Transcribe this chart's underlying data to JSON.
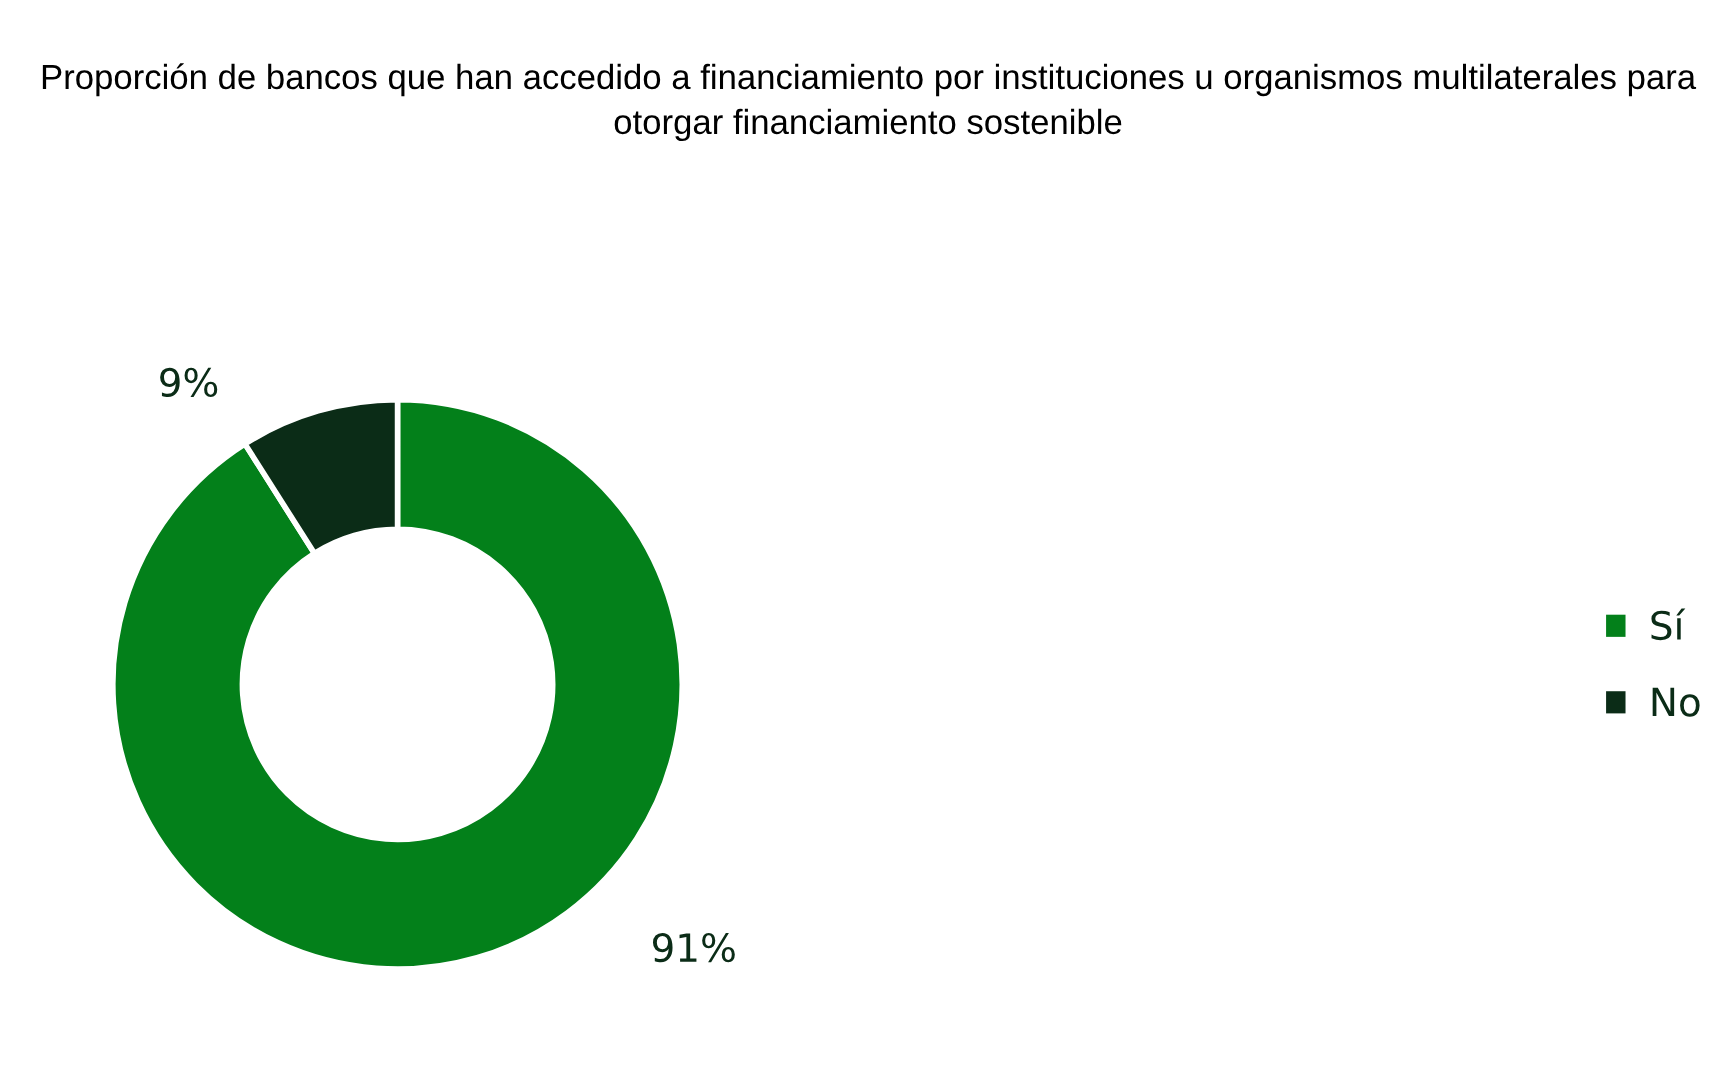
{
  "chart_data": {
    "type": "donut",
    "title": "Proporción de bancos que han accedido a financiamiento por instituciones u organismos multilaterales para otorgar financiamiento sostenible",
    "categories": [
      "Sí",
      "No"
    ],
    "values": [
      91,
      9
    ],
    "colors": [
      "#03801a",
      "#0b2c17"
    ],
    "value_labels": [
      "91%",
      "9%"
    ],
    "legend": "right"
  }
}
